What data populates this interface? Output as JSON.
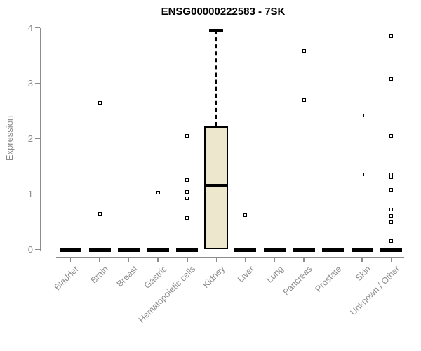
{
  "title": "ENSG00000222583 - 7SK",
  "y_axis": {
    "label": "Expression"
  },
  "colors": {
    "axis": "#8c8c8c",
    "tick_text": "#8c8c8c",
    "title_text": "#000000",
    "box_fill": "#ece7cd",
    "box_border": "#000000",
    "background": "#ffffff"
  },
  "chart_data": {
    "type": "boxplot",
    "title": "ENSG00000222583 - 7SK",
    "xlabel": "",
    "ylabel": "Expression",
    "ylim": [
      0,
      4
    ],
    "yticks": [
      "0",
      "1",
      "2",
      "3",
      "4"
    ],
    "grid": false,
    "legend": "none",
    "categories": [
      "Bladder",
      "Brain",
      "Breast",
      "Gastric",
      "Hematopoietic cells",
      "Kidney",
      "Liver",
      "Lung",
      "Pancreas",
      "Prostate",
      "Skin",
      "Unknown / Other"
    ],
    "series": [
      {
        "category": "Bladder",
        "min": 0,
        "q1": 0,
        "median": 0,
        "q3": 0,
        "max": 0,
        "outliers": []
      },
      {
        "category": "Brain",
        "min": 0,
        "q1": 0,
        "median": 0,
        "q3": 0,
        "max": 0,
        "outliers": [
          2.65,
          0.65
        ]
      },
      {
        "category": "Breast",
        "min": 0,
        "q1": 0,
        "median": 0,
        "q3": 0,
        "max": 0,
        "outliers": []
      },
      {
        "category": "Gastric",
        "min": 0,
        "q1": 0,
        "median": 0,
        "q3": 0,
        "max": 0,
        "outliers": [
          1.02
        ]
      },
      {
        "category": "Hematopoietic cells",
        "min": 0,
        "q1": 0,
        "median": 0,
        "q3": 0,
        "max": 0,
        "outliers": [
          2.05,
          1.25,
          1.04,
          0.92,
          0.57
        ]
      },
      {
        "category": "Kidney",
        "min": 0,
        "q1": 0,
        "median": 1.16,
        "q3": 2.22,
        "max": 3.95,
        "outliers": []
      },
      {
        "category": "Liver",
        "min": 0,
        "q1": 0,
        "median": 0,
        "q3": 0,
        "max": 0,
        "outliers": [
          0.62
        ]
      },
      {
        "category": "Lung",
        "min": 0,
        "q1": 0,
        "median": 0,
        "q3": 0,
        "max": 0,
        "outliers": []
      },
      {
        "category": "Pancreas",
        "min": 0,
        "q1": 0,
        "median": 0,
        "q3": 0,
        "max": 0,
        "outliers": [
          3.58,
          2.7
        ]
      },
      {
        "category": "Prostate",
        "min": 0,
        "q1": 0,
        "median": 0,
        "q3": 0,
        "max": 0,
        "outliers": []
      },
      {
        "category": "Skin",
        "min": 0,
        "q1": 0,
        "median": 0,
        "q3": 0,
        "max": 0,
        "outliers": [
          2.42,
          1.36
        ]
      },
      {
        "category": "Unknown / Other",
        "min": 0,
        "q1": 0,
        "median": 0,
        "q3": 0,
        "max": 0,
        "outliers": [
          3.85,
          3.07,
          2.05,
          1.36,
          1.3,
          1.08,
          0.72,
          0.61,
          0.5,
          0.15
        ]
      }
    ]
  }
}
